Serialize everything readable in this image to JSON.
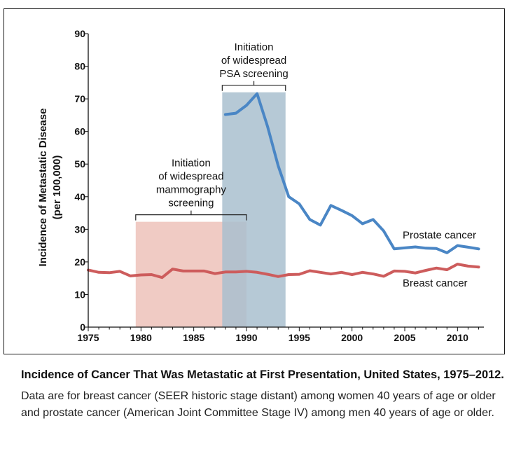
{
  "chart_data": {
    "type": "line",
    "ylabel_line1": "Incidence of Metastatic Disease",
    "ylabel_line2": "(per 100,000)",
    "xlim": [
      1975,
      2012.5
    ],
    "ylim": [
      0,
      90
    ],
    "x_ticks": [
      1975,
      1980,
      1985,
      1990,
      1995,
      2000,
      2005,
      2010
    ],
    "y_ticks": [
      0,
      10,
      20,
      30,
      40,
      50,
      60,
      70,
      80,
      90
    ],
    "grid": false,
    "series": [
      {
        "name": "Prostate cancer",
        "color": "#4a86c5",
        "x": [
          1988,
          1989,
          1990,
          1991,
          1992,
          1993,
          1994,
          1995,
          1996,
          1997,
          1998,
          1999,
          2000,
          2001,
          2002,
          2003,
          2004,
          2005,
          2006,
          2007,
          2008,
          2009,
          2010,
          2011,
          2012
        ],
        "values": [
          65.2,
          65.6,
          68,
          71.6,
          61.5,
          49.5,
          40,
          37.8,
          33,
          31.3,
          37.3,
          35.8,
          34.2,
          31.7,
          33,
          29.5,
          24,
          24.3,
          24.6,
          24.2,
          24.1,
          22.8,
          25,
          24.5,
          24
        ]
      },
      {
        "name": "Breast cancer",
        "color": "#cd5c5c",
        "x": [
          1975,
          1976,
          1977,
          1978,
          1979,
          1980,
          1981,
          1982,
          1983,
          1984,
          1985,
          1986,
          1987,
          1988,
          1989,
          1990,
          1991,
          1992,
          1993,
          1994,
          1995,
          1996,
          1997,
          1998,
          1999,
          2000,
          2001,
          2002,
          2003,
          2004,
          2005,
          2006,
          2007,
          2008,
          2009,
          2010,
          2011,
          2012
        ],
        "values": [
          17.5,
          16.8,
          16.7,
          17.1,
          15.7,
          16,
          16.1,
          15.2,
          17.8,
          17.2,
          17.2,
          17.2,
          16.4,
          16.9,
          16.9,
          17.1,
          16.8,
          16.2,
          15.5,
          16.1,
          16.2,
          17.3,
          16.8,
          16.3,
          16.8,
          16.1,
          16.8,
          16.3,
          15.6,
          17.2,
          17.1,
          16.6,
          17.4,
          18.1,
          17.6,
          19.3,
          18.7,
          18.4
        ]
      }
    ],
    "shaded_regions": [
      {
        "label_lines": [
          "Initiation",
          "of widespread",
          "mammography",
          "screening"
        ],
        "x_start": 1979.5,
        "x_end": 1990,
        "y_top": 32.3,
        "color": "#f0cbc4"
      },
      {
        "label_lines": [
          "Initiation",
          "of widespread",
          "PSA screening"
        ],
        "x_start": 1987.7,
        "x_end": 1993.7,
        "y_top": 72,
        "color": "#a9bfcf"
      }
    ]
  },
  "caption": {
    "title": "Incidence of Cancer That Was Metastatic at First Presentation, United States, 1975–2012.",
    "body": "Data are for breast cancer (SEER historic stage distant) among women 40 years of age or older and prostate cancer (American Joint Committee Stage IV) among men 40 years of age or older."
  }
}
